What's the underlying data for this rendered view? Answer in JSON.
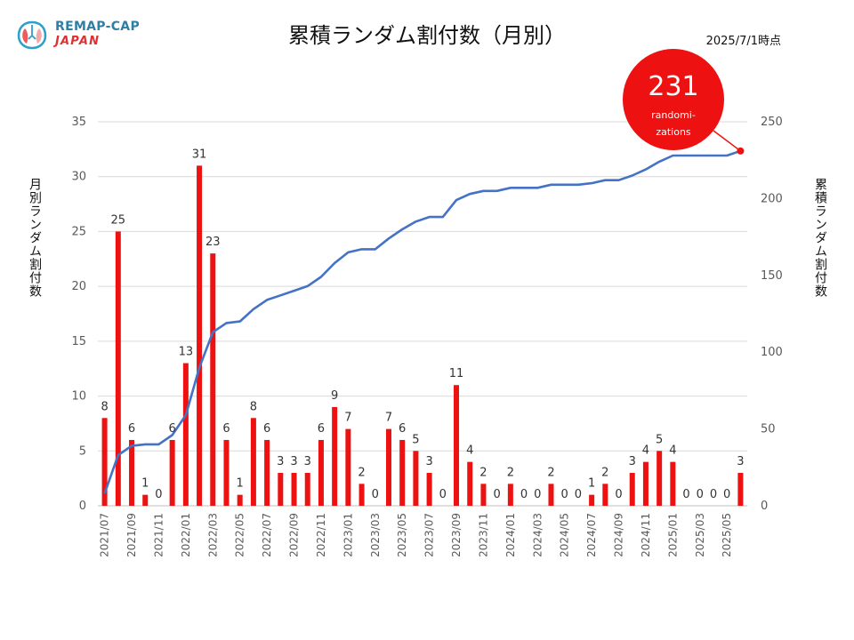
{
  "logo": {
    "line1": "REMAP-CAP",
    "line2": "JAPAN"
  },
  "title": "累積ランダム割付数（月別）",
  "as_of": "2025/7/1時点",
  "badge": {
    "number": "231",
    "line1": "randomi-",
    "line2": "zations"
  },
  "colors": {
    "bar": "#ee1111",
    "line": "#4472c4",
    "badge": "#ee1111",
    "grid": "#d9d9d9",
    "axis_text": "#595959"
  },
  "chart_data": {
    "type": "bar",
    "title": "累積ランダム割付数（月別）",
    "categories": [
      "2021/07",
      "2021/08",
      "2021/09",
      "2021/10",
      "2021/11",
      "2021/12",
      "2022/01",
      "2022/02",
      "2022/03",
      "2022/04",
      "2022/05",
      "2022/06",
      "2022/07",
      "2022/08",
      "2022/09",
      "2022/10",
      "2022/11",
      "2022/12",
      "2023/01",
      "2023/02",
      "2023/03",
      "2023/04",
      "2023/05",
      "2023/06",
      "2023/07",
      "2023/08",
      "2023/09",
      "2023/10",
      "2023/11",
      "2023/12",
      "2024/01",
      "2024/02",
      "2024/03",
      "2024/04",
      "2024/05",
      "2024/06",
      "2024/07",
      "2024/08",
      "2024/09",
      "2024/10",
      "2024/11",
      "2024/12",
      "2025/01",
      "2025/02",
      "2025/03",
      "2025/04",
      "2025/05",
      "2025/06"
    ],
    "x_tick_labels": [
      "2021/07",
      "2021/09",
      "2021/11",
      "2022/01",
      "2022/03",
      "2022/05",
      "2022/07",
      "2022/09",
      "2022/11",
      "2023/01",
      "2023/03",
      "2023/05",
      "2023/07",
      "2023/09",
      "2023/11",
      "2024/01",
      "2024/03",
      "2024/05",
      "2024/07",
      "2024/09",
      "2024/11",
      "2025/01",
      "2025/03",
      "2025/05"
    ],
    "series": [
      {
        "name": "月別ランダム割付数",
        "axis": "left",
        "type": "bar",
        "values": [
          8,
          25,
          6,
          1,
          0,
          6,
          13,
          31,
          23,
          6,
          1,
          8,
          6,
          3,
          3,
          3,
          6,
          9,
          7,
          2,
          0,
          7,
          6,
          5,
          3,
          0,
          11,
          4,
          2,
          0,
          2,
          0,
          0,
          2,
          0,
          0,
          1,
          2,
          0,
          3,
          4,
          5,
          4,
          0,
          0,
          0,
          0,
          3
        ]
      },
      {
        "name": "累積ランダム割付数",
        "axis": "right",
        "type": "line",
        "values": [
          8,
          33,
          39,
          40,
          40,
          46,
          59,
          90,
          113,
          119,
          120,
          128,
          134,
          137,
          140,
          143,
          149,
          158,
          165,
          167,
          167,
          174,
          180,
          185,
          188,
          188,
          199,
          203,
          205,
          205,
          207,
          207,
          207,
          209,
          209,
          209,
          210,
          212,
          212,
          215,
          219,
          224,
          228,
          228,
          228,
          228,
          228,
          231
        ]
      }
    ],
    "ylabel_left": "月別ランダム割付数",
    "ylabel_right": "累積ランダム割付数",
    "ylim_left": [
      0,
      35
    ],
    "yticks_left": [
      0,
      5,
      10,
      15,
      20,
      25,
      30,
      35
    ],
    "ylim_right": [
      0,
      250
    ],
    "yticks_right": [
      0,
      50,
      100,
      150,
      200,
      250
    ],
    "grid": true
  }
}
